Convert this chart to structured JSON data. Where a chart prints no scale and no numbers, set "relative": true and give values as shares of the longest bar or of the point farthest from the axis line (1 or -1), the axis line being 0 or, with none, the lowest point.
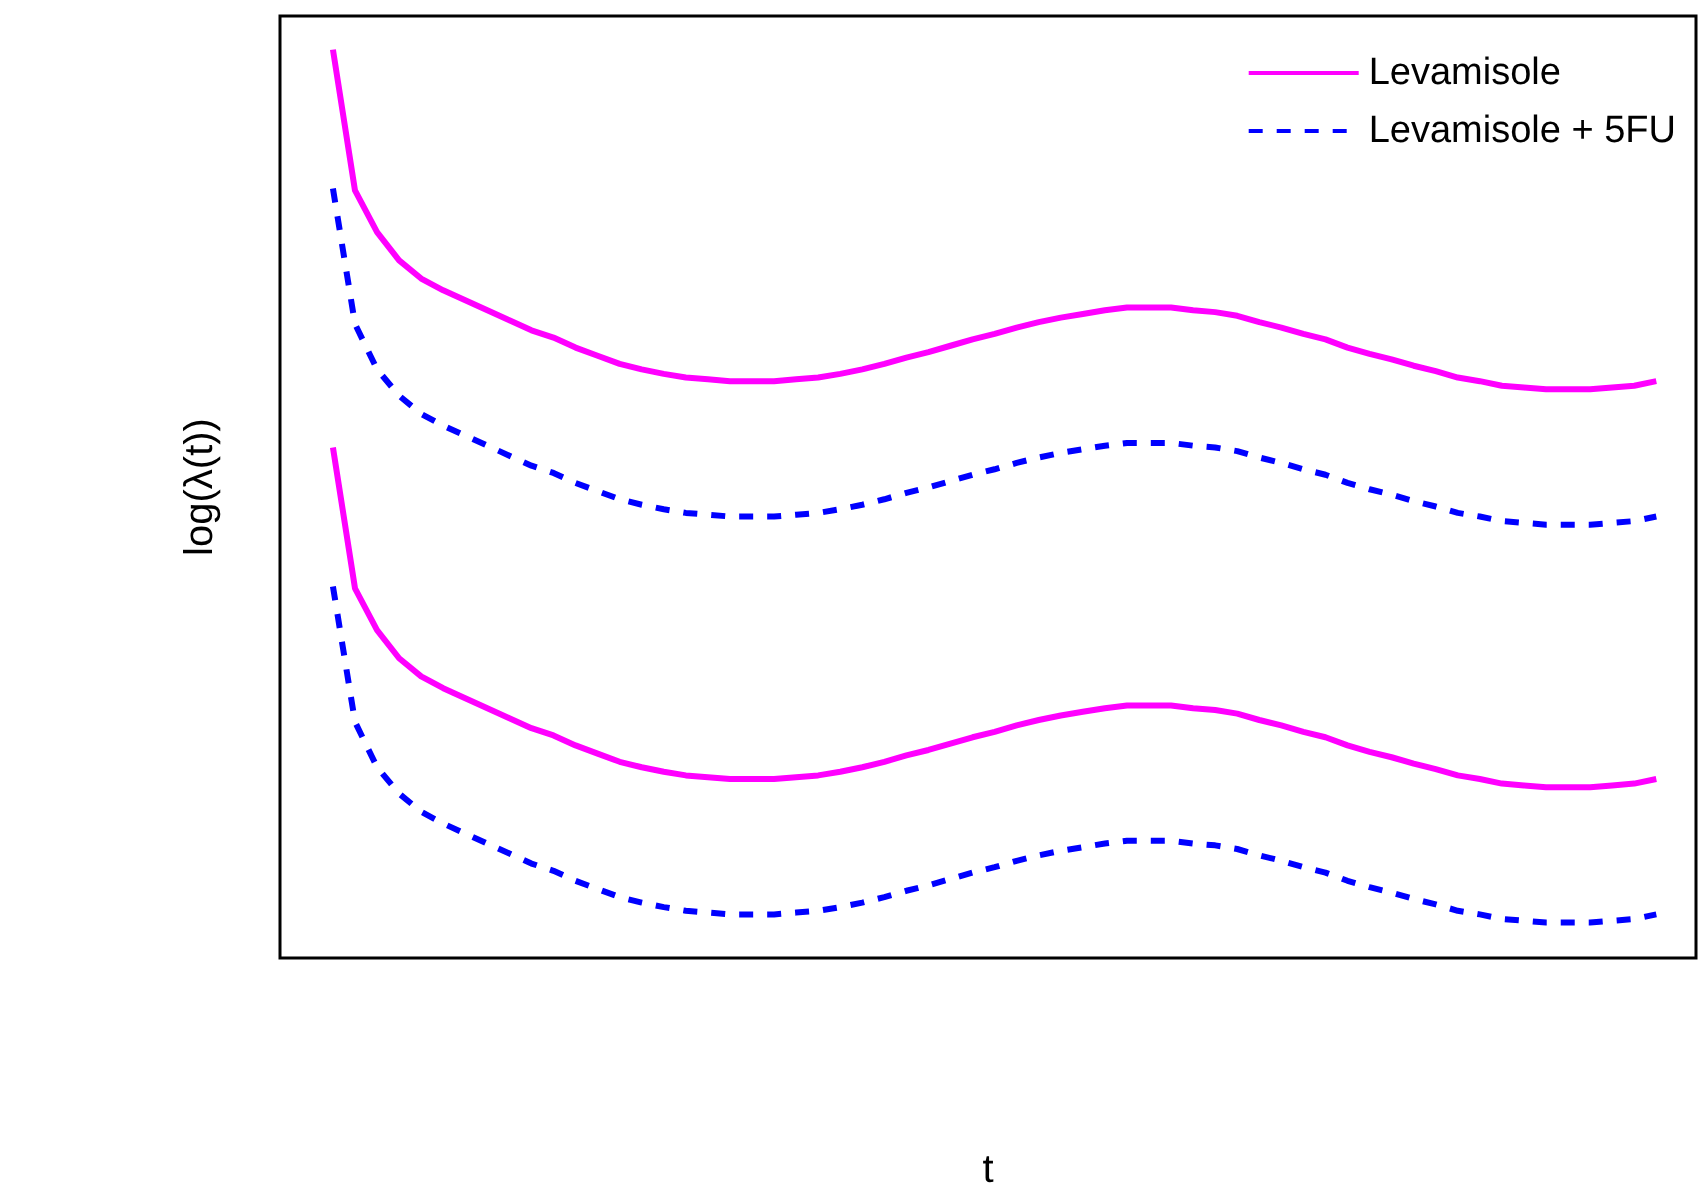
{
  "chart_data": {
    "type": "line",
    "relative": true,
    "xlabel": "t",
    "ylabel": "log(λ(t))",
    "legend": "top right",
    "marker": "none",
    "grid": false,
    "categories": [
      null,
      null,
      null,
      null,
      null,
      null,
      null,
      null,
      null,
      null,
      null,
      null,
      null,
      null,
      null,
      null,
      null,
      null,
      null,
      null,
      null,
      null,
      null,
      null,
      null,
      null,
      null,
      null,
      null,
      null,
      null,
      null,
      null,
      null,
      null,
      null,
      null,
      null,
      null,
      null,
      null,
      null,
      null,
      null,
      null,
      null,
      null,
      null,
      null,
      null,
      null,
      null,
      null,
      null,
      null,
      null,
      null,
      null,
      null,
      null,
      null
    ],
    "series": [
      {
        "name": "Levamisole",
        "color": "#ff00ff",
        "line_style": "solid",
        "values": [
          1.0,
          0.845,
          0.799,
          0.768,
          0.748,
          0.735,
          0.724,
          0.713,
          0.702,
          0.691,
          0.683,
          0.672,
          0.663,
          0.654,
          0.648,
          0.643,
          0.639,
          0.637,
          0.635,
          0.635,
          0.635,
          0.637,
          0.639,
          0.643,
          0.648,
          0.654,
          0.661,
          0.667,
          0.674,
          0.681,
          0.687,
          0.694,
          0.7,
          0.705,
          0.709,
          0.713,
          0.716,
          0.716,
          0.716,
          0.713,
          0.711,
          0.707,
          0.7,
          0.694,
          0.687,
          0.681,
          0.672,
          0.665,
          0.659,
          0.652,
          0.646,
          0.639,
          0.635,
          0.63,
          0.628,
          0.626,
          0.626,
          0.626,
          0.628,
          0.63,
          0.635
        ]
      },
      {
        "name": "Levamisole + 5FU",
        "color": "#0000ff",
        "line_style": "dashed",
        "values": [
          0.847,
          0.698,
          0.648,
          0.619,
          0.599,
          0.586,
          0.575,
          0.564,
          0.553,
          0.542,
          0.534,
          0.523,
          0.514,
          0.505,
          0.499,
          0.494,
          0.49,
          0.488,
          0.486,
          0.486,
          0.486,
          0.488,
          0.49,
          0.494,
          0.499,
          0.505,
          0.512,
          0.518,
          0.525,
          0.532,
          0.538,
          0.545,
          0.551,
          0.556,
          0.56,
          0.564,
          0.567,
          0.567,
          0.567,
          0.564,
          0.562,
          0.558,
          0.551,
          0.545,
          0.538,
          0.532,
          0.523,
          0.516,
          0.51,
          0.503,
          0.497,
          0.49,
          0.486,
          0.481,
          0.479,
          0.477,
          0.477,
          0.477,
          0.479,
          0.481,
          0.486
        ]
      },
      {
        "color": "#ff00ff",
        "line_style": "solid",
        "values": [
          0.562,
          0.407,
          0.361,
          0.33,
          0.31,
          0.297,
          0.286,
          0.275,
          0.264,
          0.253,
          0.245,
          0.234,
          0.225,
          0.216,
          0.21,
          0.205,
          0.201,
          0.199,
          0.197,
          0.197,
          0.197,
          0.199,
          0.201,
          0.205,
          0.21,
          0.216,
          0.223,
          0.229,
          0.236,
          0.243,
          0.249,
          0.256,
          0.262,
          0.267,
          0.271,
          0.275,
          0.278,
          0.278,
          0.278,
          0.275,
          0.273,
          0.269,
          0.262,
          0.256,
          0.249,
          0.243,
          0.234,
          0.227,
          0.221,
          0.214,
          0.208,
          0.201,
          0.197,
          0.192,
          0.19,
          0.188,
          0.188,
          0.188,
          0.19,
          0.192,
          0.197
        ]
      },
      {
        "color": "#0000ff",
        "line_style": "dashed",
        "values": [
          0.409,
          0.26,
          0.21,
          0.181,
          0.161,
          0.148,
          0.137,
          0.126,
          0.115,
          0.104,
          0.096,
          0.085,
          0.076,
          0.067,
          0.061,
          0.056,
          0.052,
          0.05,
          0.048,
          0.048,
          0.048,
          0.05,
          0.052,
          0.056,
          0.061,
          0.067,
          0.074,
          0.08,
          0.087,
          0.094,
          0.1,
          0.107,
          0.113,
          0.118,
          0.122,
          0.126,
          0.129,
          0.129,
          0.129,
          0.126,
          0.124,
          0.12,
          0.113,
          0.107,
          0.1,
          0.094,
          0.085,
          0.078,
          0.072,
          0.065,
          0.059,
          0.052,
          0.048,
          0.043,
          0.041,
          0.039,
          0.039,
          0.039,
          0.041,
          0.043,
          0.048
        ]
      }
    ]
  }
}
